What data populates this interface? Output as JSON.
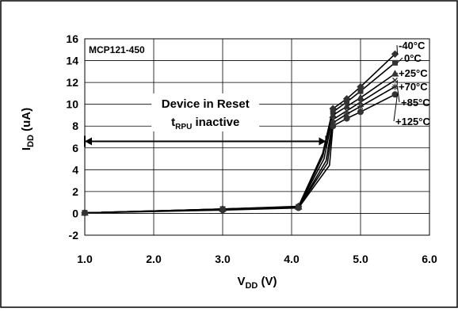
{
  "chart_data": {
    "type": "line",
    "part_number": "MCP121-450",
    "xlabel": {
      "main": "V",
      "sub": "DD",
      "tail": " (V)"
    },
    "ylabel": {
      "main": "I",
      "sub": "DD",
      "tail": " (uA)"
    },
    "xlim": [
      1.0,
      6.0
    ],
    "ylim": [
      -2,
      16
    ],
    "xticks": [
      "1.0",
      "2.0",
      "3.0",
      "4.0",
      "5.0",
      "6.0"
    ],
    "yticks": [
      "-2",
      "0",
      "2",
      "4",
      "6",
      "8",
      "10",
      "12",
      "14",
      "16"
    ],
    "grid": true,
    "annotation": {
      "line1": "Device in Reset",
      "line2_main": "t",
      "line2_sub": "RPU",
      "line2_tail": " inactive",
      "arrow_from": 1.0,
      "arrow_to": 4.5,
      "arrow_y": 6.6
    },
    "series": [
      {
        "name": "-40°C",
        "marker": "diamond",
        "points": [
          [
            1.0,
            0.05
          ],
          [
            3.0,
            0.4
          ],
          [
            4.1,
            0.65
          ],
          [
            4.45,
            5.5
          ],
          [
            4.6,
            9.6
          ],
          [
            4.8,
            10.5
          ],
          [
            5.0,
            11.6
          ],
          [
            5.5,
            14.6
          ]
        ]
      },
      {
        "name": "0°C",
        "marker": "square",
        "points": [
          [
            1.0,
            0.05
          ],
          [
            3.0,
            0.4
          ],
          [
            4.1,
            0.6
          ],
          [
            4.45,
            5.2
          ],
          [
            4.6,
            9.3
          ],
          [
            4.8,
            10.2
          ],
          [
            5.0,
            11.2
          ],
          [
            5.5,
            13.8
          ]
        ]
      },
      {
        "name": "+25°C",
        "marker": "triangle",
        "points": [
          [
            1.0,
            0.05
          ],
          [
            3.0,
            0.4
          ],
          [
            4.1,
            0.6
          ],
          [
            4.47,
            5.0
          ],
          [
            4.6,
            9.0
          ],
          [
            4.8,
            9.8
          ],
          [
            5.0,
            10.6
          ],
          [
            5.5,
            12.8
          ]
        ]
      },
      {
        "name": "+70°C",
        "marker": "x",
        "points": [
          [
            1.0,
            0.05
          ],
          [
            3.0,
            0.35
          ],
          [
            4.1,
            0.55
          ],
          [
            4.5,
            4.8
          ],
          [
            4.6,
            8.6
          ],
          [
            4.8,
            9.4
          ],
          [
            5.0,
            10.2
          ],
          [
            5.5,
            12.2
          ]
        ]
      },
      {
        "name": "+85°C",
        "marker": "star",
        "points": [
          [
            1.0,
            0.05
          ],
          [
            3.0,
            0.35
          ],
          [
            4.1,
            0.55
          ],
          [
            4.52,
            4.6
          ],
          [
            4.6,
            8.3
          ],
          [
            4.8,
            9.1
          ],
          [
            5.0,
            9.8
          ],
          [
            5.5,
            11.6
          ]
        ]
      },
      {
        "name": "+125°C",
        "marker": "circle",
        "points": [
          [
            1.0,
            0.05
          ],
          [
            3.0,
            0.3
          ],
          [
            4.1,
            0.5
          ],
          [
            4.55,
            4.4
          ],
          [
            4.6,
            8.0
          ],
          [
            4.8,
            8.7
          ],
          [
            5.0,
            9.3
          ],
          [
            5.5,
            10.9
          ]
        ]
      }
    ]
  }
}
